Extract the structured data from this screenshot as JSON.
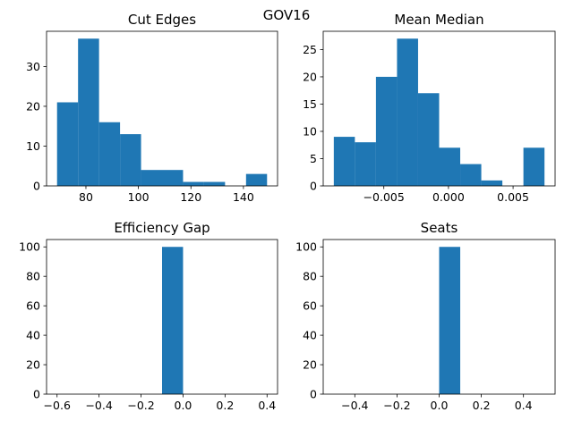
{
  "figure": {
    "suptitle": "GOV16"
  },
  "chart_data": [
    {
      "type": "bar",
      "title": "Cut Edges",
      "bars": [
        {
          "x0": 69,
          "x1": 77,
          "count": 21
        },
        {
          "x0": 77,
          "x1": 85,
          "count": 37
        },
        {
          "x0": 85,
          "x1": 93,
          "count": 16
        },
        {
          "x0": 93,
          "x1": 101,
          "count": 13
        },
        {
          "x0": 101,
          "x1": 109,
          "count": 4
        },
        {
          "x0": 109,
          "x1": 117,
          "count": 4
        },
        {
          "x0": 117,
          "x1": 125,
          "count": 1
        },
        {
          "x0": 125,
          "x1": 133,
          "count": 1
        },
        {
          "x0": 133,
          "x1": 141,
          "count": 0
        },
        {
          "x0": 141,
          "x1": 149,
          "count": 3
        }
      ],
      "xlim": [
        65,
        153
      ],
      "ylim": [
        0,
        38.85
      ],
      "xticks": [
        80,
        100,
        120,
        140
      ],
      "xtick_labels": [
        "80",
        "100",
        "120",
        "140"
      ],
      "yticks": [
        0,
        10,
        20,
        30
      ],
      "ytick_labels": [
        "0",
        "10",
        "20",
        "30"
      ]
    },
    {
      "type": "bar",
      "title": "Mean Median",
      "bars": [
        {
          "x0": -0.00887,
          "x1": -0.00724,
          "count": 9
        },
        {
          "x0": -0.00724,
          "x1": -0.00561,
          "count": 8
        },
        {
          "x0": -0.00561,
          "x1": -0.00398,
          "count": 20
        },
        {
          "x0": -0.00398,
          "x1": -0.00235,
          "count": 27
        },
        {
          "x0": -0.00235,
          "x1": -0.00072,
          "count": 17
        },
        {
          "x0": -0.00072,
          "x1": 0.00091,
          "count": 7
        },
        {
          "x0": 0.00091,
          "x1": 0.00254,
          "count": 4
        },
        {
          "x0": 0.00254,
          "x1": 0.00417,
          "count": 1
        },
        {
          "x0": 0.00417,
          "x1": 0.0058,
          "count": 0
        },
        {
          "x0": 0.0058,
          "x1": 0.00743,
          "count": 7
        }
      ],
      "xlim": [
        -0.00969,
        0.00825
      ],
      "ylim": [
        0,
        28.35
      ],
      "xticks": [
        -0.005,
        0.0,
        0.005
      ],
      "xtick_labels": [
        "−0.005",
        "0.000",
        "0.005"
      ],
      "yticks": [
        0,
        5,
        10,
        15,
        20,
        25
      ],
      "ytick_labels": [
        "0",
        "5",
        "10",
        "15",
        "20",
        "25"
      ]
    },
    {
      "type": "bar",
      "title": "Efficiency Gap",
      "bars": [
        {
          "x0": -0.1,
          "x1": 0.0,
          "count": 100
        }
      ],
      "xlim": [
        -0.65,
        0.45
      ],
      "ylim": [
        0,
        105
      ],
      "xticks": [
        -0.6,
        -0.4,
        -0.2,
        0.0,
        0.2,
        0.4
      ],
      "xtick_labels": [
        "−0.6",
        "−0.4",
        "−0.2",
        "0.0",
        "0.2",
        "0.4"
      ],
      "yticks": [
        0,
        20,
        40,
        60,
        80,
        100
      ],
      "ytick_labels": [
        "0",
        "20",
        "40",
        "60",
        "80",
        "100"
      ]
    },
    {
      "type": "bar",
      "title": "Seats",
      "bars": [
        {
          "x0": 0.0,
          "x1": 0.1,
          "count": 100
        }
      ],
      "xlim": [
        -0.55,
        0.55
      ],
      "ylim": [
        0,
        105
      ],
      "xticks": [
        -0.4,
        -0.2,
        0.0,
        0.2,
        0.4
      ],
      "xtick_labels": [
        "−0.4",
        "−0.2",
        "0.0",
        "0.2",
        "0.4"
      ],
      "yticks": [
        0,
        20,
        40,
        60,
        80,
        100
      ],
      "ytick_labels": [
        "0",
        "20",
        "40",
        "60",
        "80",
        "100"
      ]
    }
  ],
  "style": {
    "bar_color": "#1f77b4",
    "axis_color": "#000000"
  }
}
